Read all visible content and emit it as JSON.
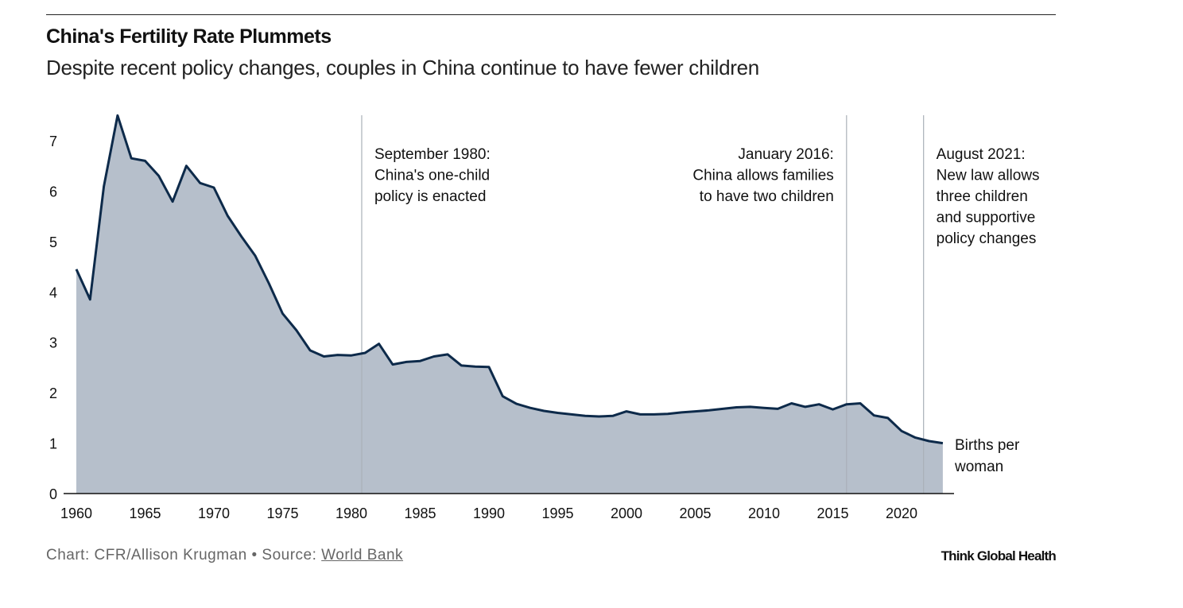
{
  "header": {
    "title": "China's Fertility Rate Plummets",
    "subtitle": "Despite recent policy changes, couples in China continue to have fewer children"
  },
  "footer": {
    "credit": "Chart: CFR/Allison Krugman • Source: ",
    "source_link": "World Bank",
    "brand": "Think Global Health"
  },
  "colors": {
    "line": "#0d2a4a",
    "area": "#b6bfcb",
    "annotation_line": "#aab0b8"
  },
  "chart_data": {
    "type": "area",
    "title": "China's Fertility Rate Plummets",
    "ylabel": "",
    "xlabel": "",
    "series_label": [
      "Births per",
      "woman"
    ],
    "ylim": [
      0,
      7.5
    ],
    "xlim": [
      1960,
      2023
    ],
    "yticks": [
      0,
      1,
      2,
      3,
      4,
      5,
      6,
      7
    ],
    "xticks": [
      1960,
      1965,
      1970,
      1975,
      1980,
      1985,
      1990,
      1995,
      2000,
      2005,
      2010,
      2015,
      2020
    ],
    "grid": false,
    "x": [
      1960,
      1961,
      1962,
      1963,
      1964,
      1965,
      1966,
      1967,
      1968,
      1969,
      1970,
      1971,
      1972,
      1973,
      1974,
      1975,
      1976,
      1977,
      1978,
      1979,
      1980,
      1981,
      1982,
      1983,
      1984,
      1985,
      1986,
      1987,
      1988,
      1989,
      1990,
      1991,
      1992,
      1993,
      1994,
      1995,
      1996,
      1997,
      1998,
      1999,
      2000,
      2001,
      2002,
      2003,
      2004,
      2005,
      2006,
      2007,
      2008,
      2009,
      2010,
      2011,
      2012,
      2013,
      2014,
      2015,
      2016,
      2017,
      2018,
      2019,
      2020,
      2021,
      2022,
      2023
    ],
    "values": [
      4.45,
      3.85,
      6.09,
      7.5,
      6.65,
      6.6,
      6.3,
      5.79,
      6.5,
      6.16,
      6.07,
      5.51,
      5.1,
      4.72,
      4.17,
      3.57,
      3.24,
      2.84,
      2.72,
      2.75,
      2.74,
      2.79,
      2.97,
      2.56,
      2.61,
      2.63,
      2.72,
      2.76,
      2.54,
      2.52,
      2.51,
      1.93,
      1.78,
      1.7,
      1.64,
      1.6,
      1.57,
      1.54,
      1.53,
      1.54,
      1.63,
      1.57,
      1.57,
      1.58,
      1.61,
      1.63,
      1.65,
      1.68,
      1.71,
      1.72,
      1.7,
      1.68,
      1.79,
      1.72,
      1.77,
      1.67,
      1.77,
      1.79,
      1.55,
      1.5,
      1.24,
      1.11,
      1.04,
      1.0
    ],
    "annotations": [
      {
        "x": 1980.75,
        "lines": [
          "September 1980:",
          "China's one-child",
          "policy is enacted"
        ],
        "align": "right-of-line"
      },
      {
        "x": 2016.0,
        "lines": [
          "January 2016:",
          "China allows families",
          "to have two children"
        ],
        "align": "left-of-line"
      },
      {
        "x": 2021.6,
        "lines": [
          "August 2021:",
          "New law allows",
          "three children",
          "and supportive",
          "policy changes"
        ],
        "align": "right-of-line"
      }
    ]
  }
}
